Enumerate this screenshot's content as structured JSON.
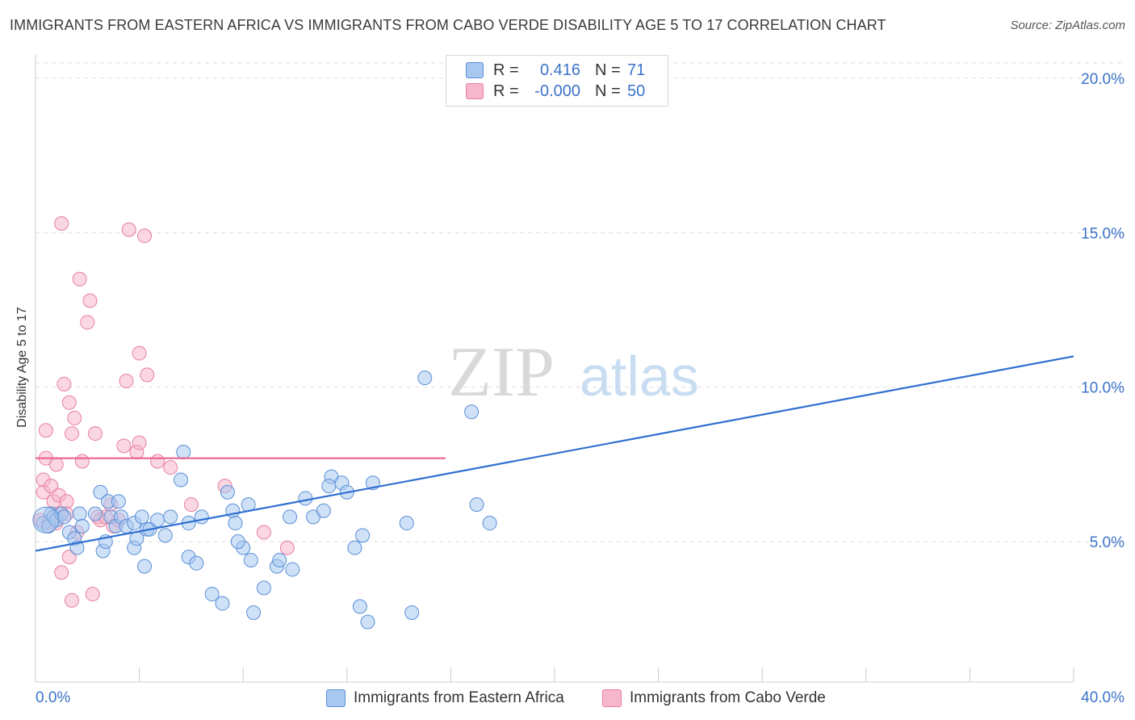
{
  "title": "IMMIGRANTS FROM EASTERN AFRICA VS IMMIGRANTS FROM CABO VERDE DISABILITY AGE 5 TO 17 CORRELATION CHART",
  "source": "Source: ZipAtlas.com",
  "watermark": {
    "part1": "ZIP",
    "part2": "atlas"
  },
  "legend": {
    "rows": [
      {
        "r_label": "R =",
        "r_value": "0.416",
        "n_label": "N =",
        "n_value": "71"
      },
      {
        "r_label": "R =",
        "r_value": "-0.000",
        "n_label": "N =",
        "n_value": "50"
      }
    ]
  },
  "colors": {
    "series1_fill": "#a8c8f0",
    "series1_stroke": "#5a8fd6",
    "series1_line": "#2f6fd0",
    "series2_fill": "#f6b6cb",
    "series2_stroke": "#e87fa1",
    "series2_line": "#e8648e",
    "tick_text": "#3b73c8",
    "grid": "#dddddd"
  },
  "chart_data": {
    "type": "scatter",
    "title": "IMMIGRANTS FROM EASTERN AFRICA VS IMMIGRANTS FROM CABO VERDE DISABILITY AGE 5 TO 17 CORRELATION CHART",
    "xlabel": "",
    "ylabel": "Disability Age 5 to 17",
    "xlim": [
      0,
      40
    ],
    "ylim": [
      0,
      20.5
    ],
    "x_tick_labels": [
      "0.0%",
      "40.0%"
    ],
    "y_ticks": [
      5,
      10,
      15,
      20
    ],
    "y_tick_labels": [
      "5.0%",
      "10.0%",
      "15.0%",
      "20.0%"
    ],
    "grid": "horizontal dashed",
    "legend_position": "top-center and bottom",
    "series": [
      {
        "name": "Immigrants from Eastern Africa",
        "R": 0.416,
        "N": 71,
        "trend": {
          "x": [
            0,
            40
          ],
          "y": [
            4.7,
            11.0
          ]
        },
        "points": [
          [
            0.3,
            5.6
          ],
          [
            0.5,
            5.5
          ],
          [
            0.6,
            5.9
          ],
          [
            0.7,
            5.8
          ],
          [
            0.8,
            5.7
          ],
          [
            1.0,
            5.9
          ],
          [
            1.1,
            5.8
          ],
          [
            1.3,
            5.3
          ],
          [
            1.5,
            5.1
          ],
          [
            1.6,
            4.8
          ],
          [
            1.7,
            5.9
          ],
          [
            1.8,
            5.5
          ],
          [
            2.3,
            5.9
          ],
          [
            2.5,
            6.6
          ],
          [
            2.6,
            4.7
          ],
          [
            2.8,
            6.3
          ],
          [
            2.7,
            5.0
          ],
          [
            2.9,
            5.8
          ],
          [
            3.1,
            5.5
          ],
          [
            3.2,
            6.3
          ],
          [
            3.3,
            5.8
          ],
          [
            3.5,
            5.5
          ],
          [
            3.8,
            5.6
          ],
          [
            3.8,
            4.8
          ],
          [
            3.9,
            5.1
          ],
          [
            4.1,
            5.8
          ],
          [
            4.2,
            4.2
          ],
          [
            4.3,
            5.4
          ],
          [
            4.4,
            5.4
          ],
          [
            4.7,
            5.7
          ],
          [
            5.0,
            5.2
          ],
          [
            5.2,
            5.8
          ],
          [
            5.6,
            7.0
          ],
          [
            5.7,
            7.9
          ],
          [
            5.9,
            5.6
          ],
          [
            5.9,
            4.5
          ],
          [
            6.2,
            4.3
          ],
          [
            6.4,
            5.8
          ],
          [
            6.8,
            3.3
          ],
          [
            7.2,
            3.0
          ],
          [
            7.4,
            6.6
          ],
          [
            7.6,
            6.0
          ],
          [
            7.7,
            5.6
          ],
          [
            8.0,
            4.8
          ],
          [
            7.8,
            5.0
          ],
          [
            8.2,
            6.2
          ],
          [
            8.3,
            4.4
          ],
          [
            8.4,
            2.7
          ],
          [
            8.8,
            3.5
          ],
          [
            9.3,
            4.2
          ],
          [
            9.4,
            4.4
          ],
          [
            9.8,
            5.8
          ],
          [
            9.9,
            4.1
          ],
          [
            10.4,
            6.4
          ],
          [
            10.7,
            5.8
          ],
          [
            11.1,
            6.0
          ],
          [
            11.4,
            7.1
          ],
          [
            12.3,
            4.8
          ],
          [
            12.6,
            5.2
          ],
          [
            12.8,
            2.4
          ],
          [
            11.8,
            6.9
          ],
          [
            11.3,
            6.8
          ],
          [
            12.0,
            6.6
          ],
          [
            12.5,
            2.9
          ],
          [
            13.0,
            6.9
          ],
          [
            14.3,
            5.6
          ],
          [
            14.5,
            2.7
          ],
          [
            17.0,
            6.2
          ],
          [
            17.5,
            5.6
          ],
          [
            16.8,
            9.2
          ],
          [
            15.0,
            10.3
          ]
        ]
      },
      {
        "name": "Immigrants from Cabo Verde",
        "R": -0.0,
        "N": 50,
        "trend": {
          "x": [
            0,
            15.8
          ],
          "y": [
            7.7,
            7.7
          ]
        },
        "points": [
          [
            0.2,
            5.7
          ],
          [
            0.3,
            7.0
          ],
          [
            0.3,
            6.6
          ],
          [
            0.4,
            7.7
          ],
          [
            0.4,
            8.6
          ],
          [
            0.5,
            5.6
          ],
          [
            0.6,
            6.8
          ],
          [
            0.7,
            5.8
          ],
          [
            0.7,
            6.3
          ],
          [
            0.8,
            5.6
          ],
          [
            0.8,
            7.5
          ],
          [
            0.9,
            6.5
          ],
          [
            0.9,
            5.9
          ],
          [
            1.0,
            4.0
          ],
          [
            1.0,
            15.3
          ],
          [
            1.1,
            10.1
          ],
          [
            1.2,
            6.3
          ],
          [
            1.2,
            5.9
          ],
          [
            1.3,
            4.5
          ],
          [
            1.3,
            9.5
          ],
          [
            1.4,
            8.5
          ],
          [
            1.4,
            3.1
          ],
          [
            1.5,
            9.0
          ],
          [
            1.6,
            5.3
          ],
          [
            1.7,
            13.5
          ],
          [
            1.8,
            7.6
          ],
          [
            2.0,
            12.1
          ],
          [
            2.1,
            12.8
          ],
          [
            2.2,
            3.3
          ],
          [
            2.3,
            8.5
          ],
          [
            2.4,
            5.8
          ],
          [
            2.5,
            5.7
          ],
          [
            2.7,
            5.8
          ],
          [
            2.9,
            6.2
          ],
          [
            3.0,
            5.5
          ],
          [
            3.2,
            5.7
          ],
          [
            3.4,
            8.1
          ],
          [
            3.5,
            10.2
          ],
          [
            3.6,
            15.1
          ],
          [
            3.9,
            7.9
          ],
          [
            4.0,
            11.1
          ],
          [
            4.0,
            8.2
          ],
          [
            4.2,
            14.9
          ],
          [
            4.3,
            10.4
          ],
          [
            4.7,
            7.6
          ],
          [
            5.2,
            7.4
          ],
          [
            6.0,
            6.2
          ],
          [
            7.3,
            6.8
          ],
          [
            8.8,
            5.3
          ],
          [
            9.7,
            4.8
          ]
        ]
      }
    ]
  }
}
